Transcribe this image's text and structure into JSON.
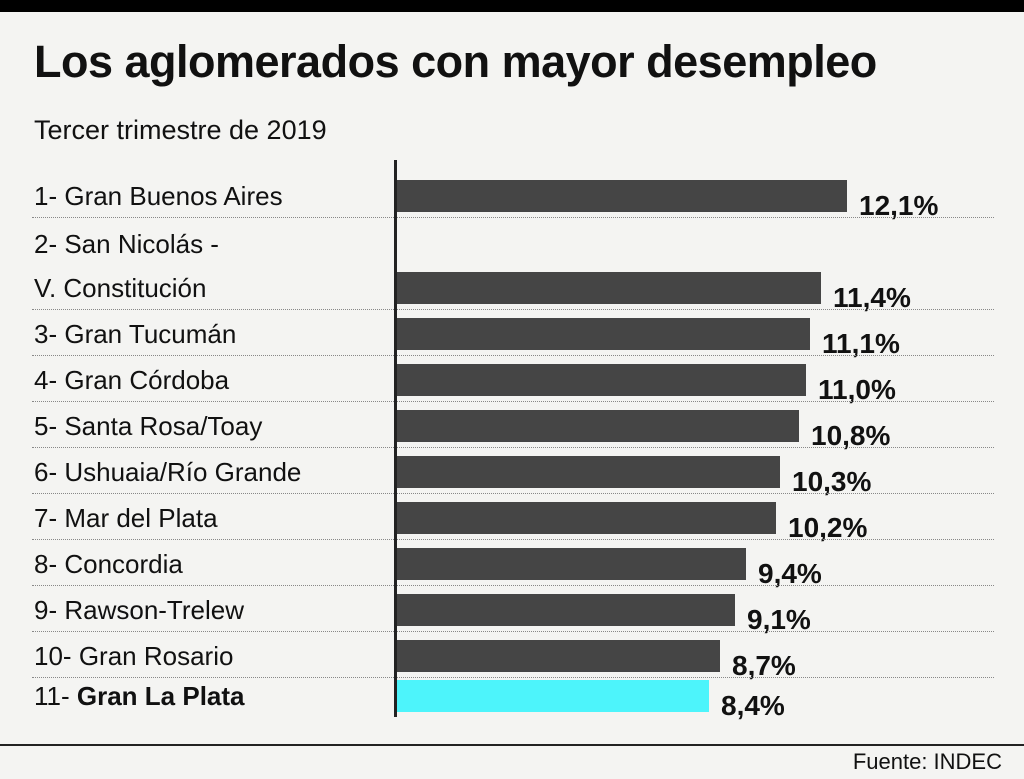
{
  "chart_data": {
    "type": "bar",
    "orientation": "horizontal",
    "title": "Los aglomerados con mayor desempleo",
    "subtitle": "Tercer trimestre de 2019",
    "source": "Fuente: INDEC",
    "categories": [
      {
        "prefix": "1- ",
        "lines": [
          "Gran Buenos Aires"
        ]
      },
      {
        "prefix": "2- ",
        "lines": [
          "San Nicolás -",
          "V. Constitución"
        ]
      },
      {
        "prefix": "3- ",
        "lines": [
          "Gran Tucumán"
        ]
      },
      {
        "prefix": "4- ",
        "lines": [
          "Gran Córdoba"
        ]
      },
      {
        "prefix": "5- ",
        "lines": [
          "Santa Rosa/Toay"
        ]
      },
      {
        "prefix": "6- ",
        "lines": [
          "Ushuaia/Río Grande"
        ]
      },
      {
        "prefix": "7- ",
        "lines": [
          "Mar del Plata"
        ]
      },
      {
        "prefix": "8- ",
        "lines": [
          "Concordia"
        ]
      },
      {
        "prefix": "9- ",
        "lines": [
          "Rawson-Trelew"
        ]
      },
      {
        "prefix": "10- ",
        "lines": [
          "Gran Rosario"
        ]
      },
      {
        "prefix": "11- ",
        "lines": [
          "Gran La Plata"
        ],
        "highlight": true
      }
    ],
    "values": [
      12.1,
      11.4,
      11.1,
      11.0,
      10.8,
      10.3,
      10.2,
      9.4,
      9.1,
      8.7,
      8.4
    ],
    "value_labels": [
      "12,1%",
      "11,4%",
      "11,1%",
      "11,0%",
      "10,8%",
      "10,3%",
      "10,2%",
      "9,4%",
      "9,1%",
      "8,7%",
      "8,4%"
    ],
    "unit": "%",
    "colors": {
      "bar": "#454545",
      "highlight": "#4df4fb"
    }
  }
}
